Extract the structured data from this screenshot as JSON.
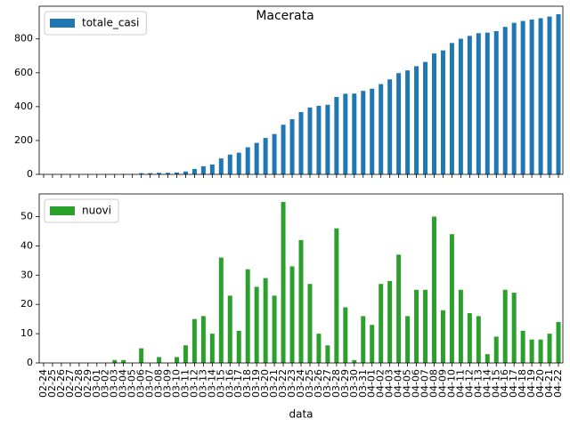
{
  "chart_data": [
    {
      "type": "bar",
      "title": "Macerata",
      "series": [
        {
          "name": "totale_casi",
          "color": "#1f77b4",
          "values": [
            0,
            0,
            0,
            0,
            0,
            0,
            0,
            0,
            1,
            2,
            2,
            7,
            7,
            9,
            9,
            11,
            17,
            32,
            48,
            58,
            94,
            117,
            128,
            160,
            186,
            215,
            238,
            293,
            326,
            368,
            395,
            405,
            411,
            457,
            476,
            477,
            493,
            506,
            533,
            561,
            598,
            614,
            639,
            664,
            714,
            732,
            776,
            801,
            818,
            834,
            837,
            846,
            871,
            895,
            906,
            914,
            922,
            932,
            946
          ]
        }
      ],
      "ylim": [
        0,
        993
      ],
      "yticks": [
        0,
        200,
        400,
        600,
        800
      ],
      "legend": "upper left"
    },
    {
      "type": "bar",
      "xlabel": "data",
      "categories": [
        "02-24",
        "02-25",
        "02-26",
        "02-27",
        "02-28",
        "02-29",
        "03-01",
        "03-02",
        "03-03",
        "03-04",
        "03-05",
        "03-06",
        "03-07",
        "03-08",
        "03-09",
        "03-10",
        "03-11",
        "03-12",
        "03-13",
        "03-14",
        "03-15",
        "03-16",
        "03-17",
        "03-18",
        "03-19",
        "03-20",
        "03-21",
        "03-22",
        "03-23",
        "03-24",
        "03-25",
        "03-26",
        "03-27",
        "03-28",
        "03-29",
        "03-30",
        "03-31",
        "04-01",
        "04-02",
        "04-03",
        "04-04",
        "04-05",
        "04-06",
        "04-07",
        "04-08",
        "04-09",
        "04-10",
        "04-11",
        "04-12",
        "04-13",
        "04-14",
        "04-15",
        "04-16",
        "04-17",
        "04-18",
        "04-19",
        "04-20",
        "04-21",
        "04-22"
      ],
      "series": [
        {
          "name": "nuovi",
          "color": "#2ca02c",
          "values": [
            0,
            0,
            0,
            0,
            0,
            0,
            0,
            0,
            1,
            1,
            0,
            5,
            0,
            2,
            0,
            2,
            6,
            15,
            16,
            10,
            36,
            23,
            11,
            32,
            26,
            29,
            23,
            55,
            33,
            42,
            27,
            10,
            6,
            46,
            19,
            1,
            16,
            13,
            27,
            28,
            37,
            16,
            25,
            25,
            50,
            18,
            44,
            25,
            17,
            16,
            3,
            9,
            25,
            24,
            11,
            8,
            8,
            10,
            14
          ]
        }
      ],
      "ylim": [
        0,
        57.75
      ],
      "yticks": [
        0,
        10,
        20,
        30,
        40,
        50
      ],
      "legend": "upper left"
    }
  ]
}
